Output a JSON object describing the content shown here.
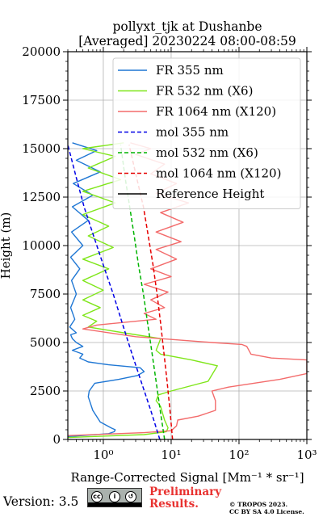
{
  "chart_data": {
    "type": "line",
    "title": "pollyxt_tjk at Dushanbe",
    "subtitle": "[Averaged] 20230224 08:00-08:59",
    "xlabel": "Range-Corrected Signal [Mm⁻¹ * sr⁻¹]",
    "ylabel": "Height (m)",
    "xscale": "log",
    "xlim": [
      0.3,
      1000
    ],
    "ylim": [
      0,
      20000
    ],
    "x_ticks": [
      1,
      10,
      100,
      1000
    ],
    "x_tick_labels": [
      "10⁰",
      "10¹",
      "10²",
      "10³"
    ],
    "y_ticks": [
      0,
      2500,
      5000,
      7500,
      10000,
      12500,
      15000,
      17500,
      20000
    ],
    "y_tick_labels": [
      "0",
      "2500",
      "5000",
      "7500",
      "10000",
      "12500",
      "15000",
      "17500",
      "20000"
    ],
    "grid": true,
    "legend_position": "top-right",
    "series": [
      {
        "name": "FR 355 nm",
        "color": "#1f77d4",
        "style": "solid",
        "points": [
          [
            0.3,
            150
          ],
          [
            1.2,
            300
          ],
          [
            1.45,
            400
          ],
          [
            1.5,
            500
          ],
          [
            1.3,
            600
          ],
          [
            0.9,
            900
          ],
          [
            0.7,
            1500
          ],
          [
            0.6,
            2200
          ],
          [
            0.62,
            2500
          ],
          [
            0.75,
            2900
          ],
          [
            1.7,
            3100
          ],
          [
            3.2,
            3300
          ],
          [
            4.0,
            3500
          ],
          [
            3.5,
            3700
          ],
          [
            1.2,
            3850
          ],
          [
            0.6,
            4000
          ],
          [
            0.45,
            4200
          ],
          [
            0.5,
            4400
          ],
          [
            0.35,
            4600
          ],
          [
            0.5,
            4800
          ],
          [
            0.4,
            5000
          ],
          [
            0.35,
            5200
          ],
          [
            0.33,
            5400
          ],
          [
            0.4,
            5500
          ],
          [
            0.32,
            5800
          ],
          [
            0.38,
            6200
          ],
          [
            0.33,
            6800
          ],
          [
            0.4,
            7500
          ],
          [
            0.34,
            8200
          ],
          [
            0.45,
            8800
          ],
          [
            0.33,
            9400
          ],
          [
            0.5,
            10000
          ],
          [
            0.34,
            10700
          ],
          [
            0.6,
            11300
          ],
          [
            0.35,
            12000
          ],
          [
            0.7,
            12600
          ],
          [
            0.36,
            13200
          ],
          [
            0.9,
            13800
          ],
          [
            0.4,
            14400
          ],
          [
            0.8,
            14900
          ],
          [
            0.35,
            15300
          ]
        ]
      },
      {
        "name": "FR 532 nm (X6)",
        "color": "#7fe61a",
        "style": "solid",
        "points": [
          [
            0.3,
            100
          ],
          [
            4.0,
            250
          ],
          [
            8.5,
            400
          ],
          [
            9.0,
            600
          ],
          [
            8.0,
            1000
          ],
          [
            7.0,
            1700
          ],
          [
            6.0,
            2000
          ],
          [
            6.5,
            2300
          ],
          [
            10.0,
            2500
          ],
          [
            35.0,
            3000
          ],
          [
            48.0,
            3800
          ],
          [
            20.0,
            4100
          ],
          [
            7.0,
            4400
          ],
          [
            6.0,
            4600
          ],
          [
            6.5,
            4900
          ],
          [
            7.0,
            5200
          ],
          [
            2.0,
            5500
          ],
          [
            0.6,
            5800
          ],
          [
            0.8,
            6100
          ],
          [
            0.5,
            6400
          ],
          [
            0.9,
            6800
          ],
          [
            0.5,
            7200
          ],
          [
            1.0,
            7700
          ],
          [
            0.5,
            8200
          ],
          [
            1.2,
            8800
          ],
          [
            0.5,
            9300
          ],
          [
            1.4,
            9900
          ],
          [
            0.6,
            10500
          ],
          [
            1.2,
            11000
          ],
          [
            0.5,
            11600
          ],
          [
            1.5,
            12200
          ],
          [
            0.5,
            12800
          ],
          [
            1.8,
            13400
          ],
          [
            0.6,
            14000
          ],
          [
            1.5,
            14600
          ],
          [
            0.5,
            15000
          ],
          [
            2.0,
            15300
          ]
        ]
      },
      {
        "name": "FR 1064 nm (X120)",
        "color": "#f36b6b",
        "style": "solid",
        "points": [
          [
            0.3,
            200
          ],
          [
            4.0,
            350
          ],
          [
            10.0,
            450
          ],
          [
            12.0,
            700
          ],
          [
            12.5,
            1000
          ],
          [
            25.0,
            1200
          ],
          [
            45.0,
            1500
          ],
          [
            45.0,
            2000
          ],
          [
            40.0,
            2500
          ],
          [
            70.0,
            2700
          ],
          [
            400.0,
            3100
          ],
          [
            1000.0,
            3400
          ],
          [
            1000.0,
            4100
          ],
          [
            300.0,
            4200
          ],
          [
            150.0,
            4400
          ],
          [
            130.0,
            4800
          ],
          [
            110.0,
            4900
          ],
          [
            40.0,
            5000
          ],
          [
            3.0,
            5300
          ],
          [
            0.5,
            5700
          ],
          [
            0.8,
            5900
          ],
          [
            6.0,
            6200
          ],
          [
            4.0,
            6500
          ],
          [
            8.0,
            6800
          ],
          [
            5.0,
            7200
          ],
          [
            9.0,
            7600
          ],
          [
            4.0,
            8000
          ],
          [
            10.0,
            8400
          ],
          [
            5.0,
            8800
          ],
          [
            12.0,
            9300
          ],
          [
            6.0,
            9800
          ],
          [
            14.0,
            10200
          ],
          [
            6.0,
            10700
          ],
          [
            15.0,
            11200
          ],
          [
            7.0,
            11700
          ],
          [
            18.0,
            12200
          ],
          [
            6.0,
            12700
          ],
          [
            12.0,
            13200
          ],
          [
            5.0,
            13700
          ],
          [
            8.0,
            14200
          ],
          [
            3.0,
            14700
          ],
          [
            5.0,
            15000
          ],
          [
            2.5,
            15300
          ]
        ]
      },
      {
        "name": "mol 355 nm",
        "color": "#0000e6",
        "style": "dashed",
        "points": [
          [
            6.8,
            0
          ],
          [
            5.0,
            1500
          ],
          [
            3.6,
            3000
          ],
          [
            2.6,
            4500
          ],
          [
            1.9,
            6000
          ],
          [
            1.4,
            7500
          ],
          [
            1.0,
            9000
          ],
          [
            0.72,
            10500
          ],
          [
            0.52,
            12000
          ],
          [
            0.4,
            13500
          ],
          [
            0.3,
            15200
          ]
        ]
      },
      {
        "name": "mol 532 nm (X6)",
        "color": "#00b400",
        "style": "dashed",
        "points": [
          [
            8.0,
            0
          ],
          [
            6.9,
            1500
          ],
          [
            6.0,
            3000
          ],
          [
            5.2,
            4500
          ],
          [
            4.5,
            6000
          ],
          [
            3.9,
            7500
          ],
          [
            3.3,
            9000
          ],
          [
            2.85,
            10500
          ],
          [
            2.45,
            12000
          ],
          [
            2.1,
            13500
          ],
          [
            1.8,
            15200
          ]
        ]
      },
      {
        "name": "mol 1064 nm (X120)",
        "color": "#e60000",
        "style": "dashed",
        "points": [
          [
            10.5,
            0
          ],
          [
            9.6,
            1500
          ],
          [
            8.7,
            3000
          ],
          [
            7.8,
            4500
          ],
          [
            7.0,
            6000
          ],
          [
            6.2,
            7500
          ],
          [
            5.4,
            9000
          ],
          [
            4.6,
            10500
          ],
          [
            3.9,
            12000
          ],
          [
            3.1,
            13500
          ],
          [
            2.4,
            15200
          ]
        ]
      },
      {
        "name": "Reference Height",
        "color": "#000000",
        "style": "solid",
        "points": []
      }
    ]
  },
  "footer": {
    "version": "Version: 3.5",
    "license_badge": [
      "BY",
      "SA"
    ],
    "preliminary_line1": "Preliminary",
    "preliminary_line2": "Results.",
    "copyright_line1": "© TROPOS 2023.",
    "copyright_line2": "CC BY SA 4.0 License."
  }
}
